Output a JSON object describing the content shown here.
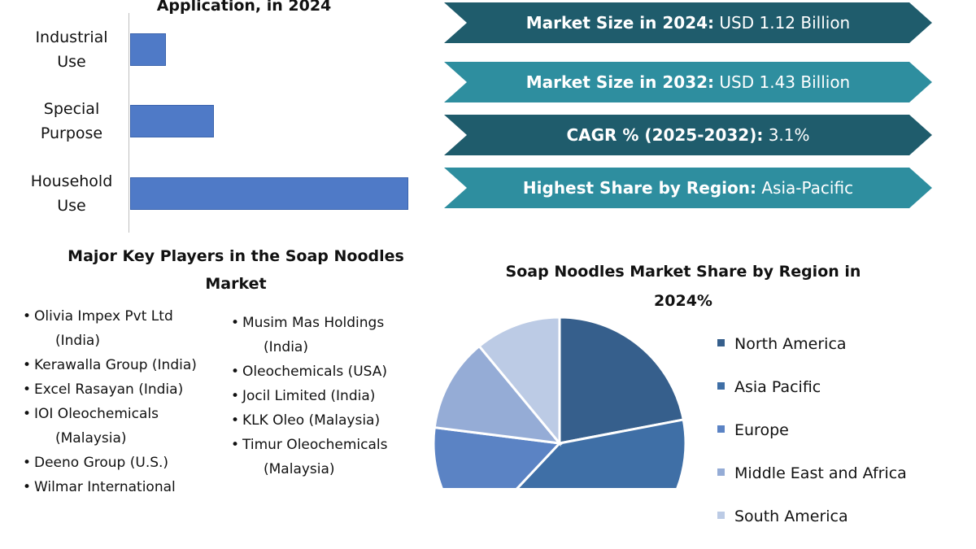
{
  "chart_data": [
    {
      "type": "bar",
      "orientation": "horizontal",
      "title": "Application, in 2024",
      "categories": [
        "Industrial Use",
        "Special Purpose",
        "Household Use"
      ],
      "category_lines": [
        [
          "Industrial",
          "Use"
        ],
        [
          "Special",
          "Purpose"
        ],
        [
          "Household",
          "Use"
        ]
      ],
      "values": [
        13,
        30,
        100
      ],
      "unit_note": "relative share, no axis printed",
      "grid": false,
      "colors": [
        "#4f7ac7"
      ]
    },
    {
      "type": "pie",
      "title_lines": [
        "Soap Noodles Market Share by Region in",
        "2024%"
      ],
      "labels": [
        "North America",
        "Asia Pacific",
        "Europe",
        "Middle East and Africa",
        "South America"
      ],
      "values": [
        22,
        40,
        15,
        12,
        11
      ],
      "colors": [
        "#365f8c",
        "#3f6fa6",
        "#5b83c4",
        "#95acd6",
        "#bccbe5"
      ],
      "legend_position": "right"
    }
  ],
  "stats": [
    {
      "label": "Market Size in 2024:",
      "value": " USD 1.12 Billion",
      "color": "#1f5c6c"
    },
    {
      "label": "Market Size in 2032:",
      "value": " USD 1.43 Billion",
      "color": "#2e8e9f"
    },
    {
      "label": "CAGR % (2025-2032):",
      "value": " 3.1%",
      "color": "#1f5c6c"
    },
    {
      "label": "Highest Share by Region:",
      "value": " Asia-Pacific",
      "color": "#2e8e9f"
    }
  ],
  "players_title_lines": [
    "Major Key Players in the Soap Noodles",
    "Market"
  ],
  "players_col1": [
    [
      "Olivia Impex Pvt Ltd",
      "(India)"
    ],
    [
      "Kerawalla Group (India)"
    ],
    [
      "Excel Rasayan (India)"
    ],
    [
      "IOI Oleochemicals",
      "(Malaysia)"
    ],
    [
      "Deeno Group (U.S.)"
    ],
    [
      "Wilmar International"
    ]
  ],
  "players_col2": [
    [
      "Musim Mas Holdings",
      "(India)"
    ],
    [
      "Oleochemicals (USA)"
    ],
    [
      "Jocil Limited (India)"
    ],
    [
      "KLK Oleo (Malaysia)"
    ],
    [
      "Timur Oleochemicals",
      "(Malaysia)"
    ]
  ]
}
